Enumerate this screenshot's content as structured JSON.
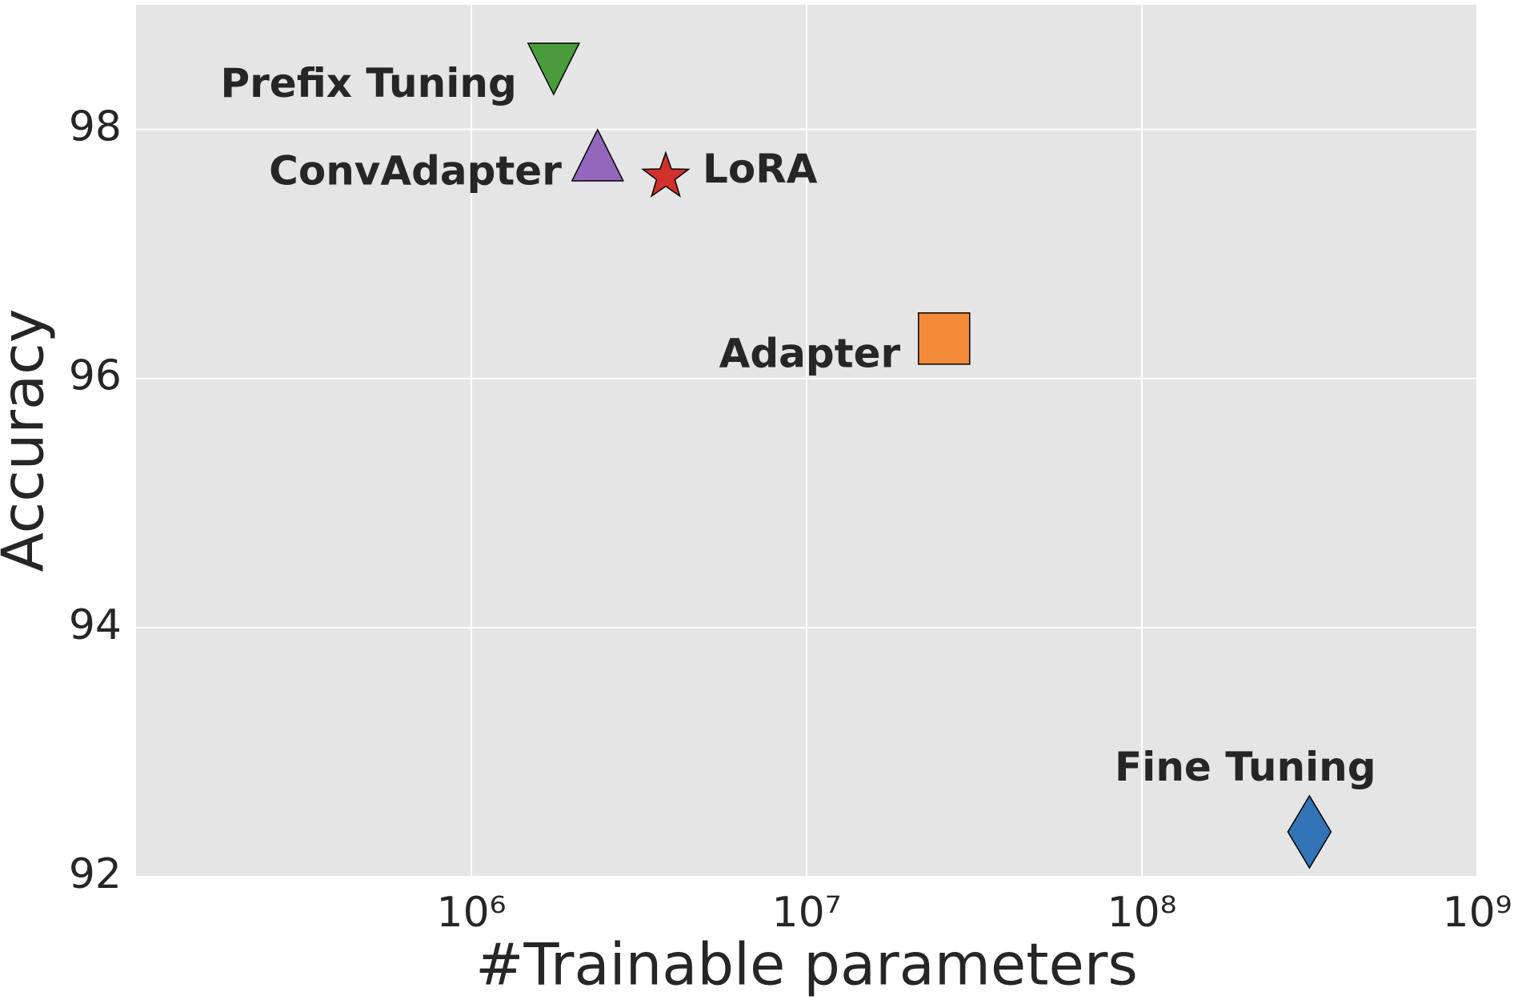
{
  "chart_data": {
    "type": "scatter",
    "x_label": "#Trainable parameters",
    "y_label": "Accuracy",
    "x_scale": "log",
    "xlim": [
      100000,
      1000000000
    ],
    "ylim": [
      92,
      99
    ],
    "xticks": [
      {
        "value": 1000000,
        "label": "10⁶"
      },
      {
        "value": 10000000,
        "label": "10⁷"
      },
      {
        "value": 100000000,
        "label": "10⁸"
      },
      {
        "value": 1000000000,
        "label": "10⁹"
      }
    ],
    "yticks": [
      92,
      94,
      96,
      98
    ],
    "grid": true,
    "series": [
      {
        "name": "Prefix Tuning",
        "color": "#4a9b3c",
        "marker": "triangle-down",
        "x": [
          1760000
        ],
        "values": [
          98.55
        ]
      },
      {
        "name": "ConvAdapter",
        "color": "#9467bd",
        "marker": "triangle-up",
        "x": [
          2380000
        ],
        "values": [
          97.76
        ]
      },
      {
        "name": "LoRA",
        "color": "#d2302c",
        "marker": "star",
        "x": [
          3800000
        ],
        "values": [
          97.62
        ]
      },
      {
        "name": "Adapter",
        "color": "#f28a37",
        "marker": "square",
        "x": [
          25700000
        ],
        "values": [
          96.32
        ]
      },
      {
        "name": "Fine Tuning",
        "color": "#3274b5",
        "marker": "diamond",
        "x": [
          316000000
        ],
        "values": [
          92.36
        ]
      }
    ]
  }
}
